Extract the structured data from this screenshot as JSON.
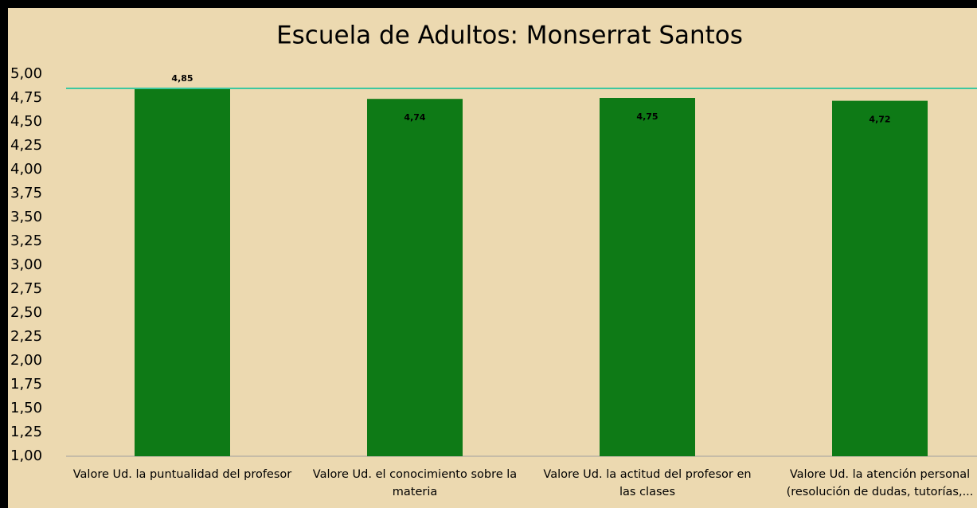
{
  "chart_data": {
    "type": "bar",
    "title": "Escuela de Adultos: Monserrat Santos",
    "categories": [
      "Valore Ud. la puntualidad del profesor",
      "Valore Ud. el conocimiento sobre la materia",
      "Valore Ud. la actitud del profesor en las clases",
      "Valore Ud. la atención personal (resolución de dudas, tutorías,..."
    ],
    "values": [
      4.85,
      4.74,
      4.75,
      4.72
    ],
    "value_labels": [
      "4,85",
      "4,74",
      "4,75",
      "4,72"
    ],
    "color": "#0e7a16",
    "reference_line": {
      "value": 4.85,
      "color": "#3cc8a0"
    },
    "ylim": [
      1,
      5
    ],
    "yticks": [
      {
        "value": 1,
        "label": "1,00"
      },
      {
        "value": 1.25,
        "label": "1,25"
      },
      {
        "value": 1.5,
        "label": "1,50"
      },
      {
        "value": 1.75,
        "label": "1,75"
      },
      {
        "value": 2,
        "label": "2,00"
      },
      {
        "value": 2.25,
        "label": "2,25"
      },
      {
        "value": 2.5,
        "label": "2,50"
      },
      {
        "value": 2.75,
        "label": "2,75"
      },
      {
        "value": 3,
        "label": "3,00"
      },
      {
        "value": 3.25,
        "label": "3,25"
      },
      {
        "value": 3.5,
        "label": "3,50"
      },
      {
        "value": 3.75,
        "label": "3,75"
      },
      {
        "value": 4,
        "label": "4,00"
      },
      {
        "value": 4.25,
        "label": "4,25"
      },
      {
        "value": 4.5,
        "label": "4,50"
      },
      {
        "value": 4.75,
        "label": "4,75"
      },
      {
        "value": 5,
        "label": "5,00"
      }
    ]
  }
}
